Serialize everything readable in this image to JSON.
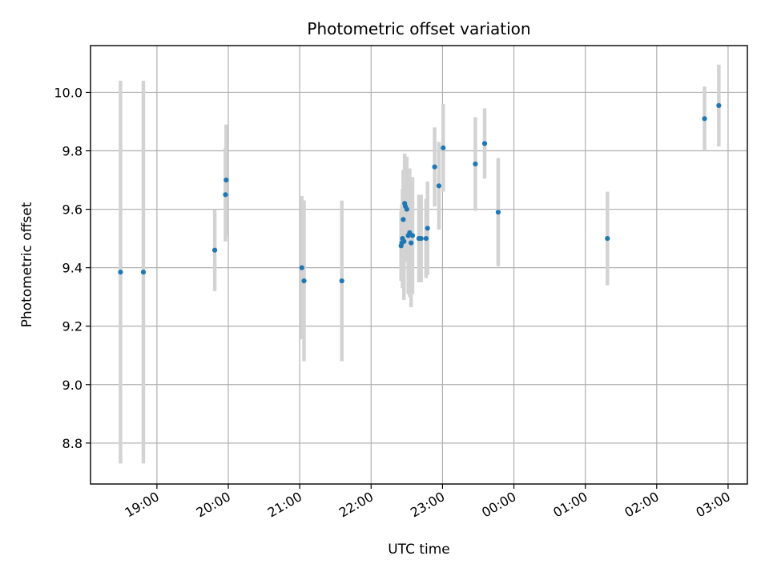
{
  "chart_data": {
    "type": "scatter",
    "title": "Photometric offset variation",
    "xlabel": "UTC time",
    "ylabel": "Photometric offset",
    "x_unit": "hours from 19:00 UTC (values past 24 are the following day)",
    "xlim": [
      -0.93,
      8.27
    ],
    "ylim": [
      8.66,
      10.16
    ],
    "x_ticks": [
      {
        "value": 0,
        "label": "19:00"
      },
      {
        "value": 1,
        "label": "20:00"
      },
      {
        "value": 2,
        "label": "21:00"
      },
      {
        "value": 3,
        "label": "22:00"
      },
      {
        "value": 4,
        "label": "23:00"
      },
      {
        "value": 5,
        "label": "00:00"
      },
      {
        "value": 6,
        "label": "01:00"
      },
      {
        "value": 7,
        "label": "02:00"
      },
      {
        "value": 8,
        "label": "03:00"
      }
    ],
    "y_ticks": [
      {
        "value": 8.8,
        "label": "8.8"
      },
      {
        "value": 9.0,
        "label": "9.0"
      },
      {
        "value": 9.2,
        "label": "9.2"
      },
      {
        "value": 9.4,
        "label": "9.4"
      },
      {
        "value": 9.6,
        "label": "9.6"
      },
      {
        "value": 9.8,
        "label": "9.8"
      },
      {
        "value": 10.0,
        "label": "10.0"
      }
    ],
    "grid": true,
    "colors": {
      "point": "#1f77b4",
      "errorbar": "#d3d3d3",
      "grid": "#b0b0b0"
    },
    "series": [
      {
        "points": [
          {
            "x": -0.51,
            "y": 9.385,
            "err": 0.655
          },
          {
            "x": -0.19,
            "y": 9.385,
            "err": 0.655
          },
          {
            "x": 0.81,
            "y": 9.46,
            "err": 0.14
          },
          {
            "x": 0.96,
            "y": 9.65,
            "err": 0.16
          },
          {
            "x": 0.97,
            "y": 9.7,
            "err": 0.19
          },
          {
            "x": 2.03,
            "y": 9.4,
            "err": 0.245
          },
          {
            "x": 2.06,
            "y": 9.355,
            "err": 0.275
          },
          {
            "x": 2.59,
            "y": 9.355,
            "err": 0.275
          },
          {
            "x": 3.42,
            "y": 9.475,
            "err": 0.12
          },
          {
            "x": 3.43,
            "y": 9.485,
            "err": 0.13
          },
          {
            "x": 3.44,
            "y": 9.5,
            "err": 0.17
          },
          {
            "x": 3.45,
            "y": 9.565,
            "err": 0.17
          },
          {
            "x": 3.46,
            "y": 9.49,
            "err": 0.2
          },
          {
            "x": 3.47,
            "y": 9.62,
            "err": 0.17
          },
          {
            "x": 3.48,
            "y": 9.61,
            "err": 0.16
          },
          {
            "x": 3.5,
            "y": 9.6,
            "err": 0.18
          },
          {
            "x": 3.52,
            "y": 9.51,
            "err": 0.2
          },
          {
            "x": 3.54,
            "y": 9.52,
            "err": 0.22
          },
          {
            "x": 3.56,
            "y": 9.485,
            "err": 0.22
          },
          {
            "x": 3.58,
            "y": 9.51,
            "err": 0.2
          },
          {
            "x": 3.67,
            "y": 9.5,
            "err": 0.15
          },
          {
            "x": 3.7,
            "y": 9.5,
            "err": 0.15
          },
          {
            "x": 3.77,
            "y": 9.5,
            "err": 0.135
          },
          {
            "x": 3.79,
            "y": 9.535,
            "err": 0.16
          },
          {
            "x": 3.89,
            "y": 9.745,
            "err": 0.135
          },
          {
            "x": 3.95,
            "y": 9.68,
            "err": 0.15
          },
          {
            "x": 4.01,
            "y": 9.81,
            "err": 0.15
          },
          {
            "x": 4.46,
            "y": 9.755,
            "err": 0.16
          },
          {
            "x": 4.59,
            "y": 9.825,
            "err": 0.12
          },
          {
            "x": 4.78,
            "y": 9.59,
            "err": 0.185
          },
          {
            "x": 6.31,
            "y": 9.5,
            "err": 0.16
          },
          {
            "x": 7.67,
            "y": 9.91,
            "err": 0.11
          },
          {
            "x": 7.87,
            "y": 9.955,
            "err": 0.14
          }
        ]
      }
    ]
  }
}
